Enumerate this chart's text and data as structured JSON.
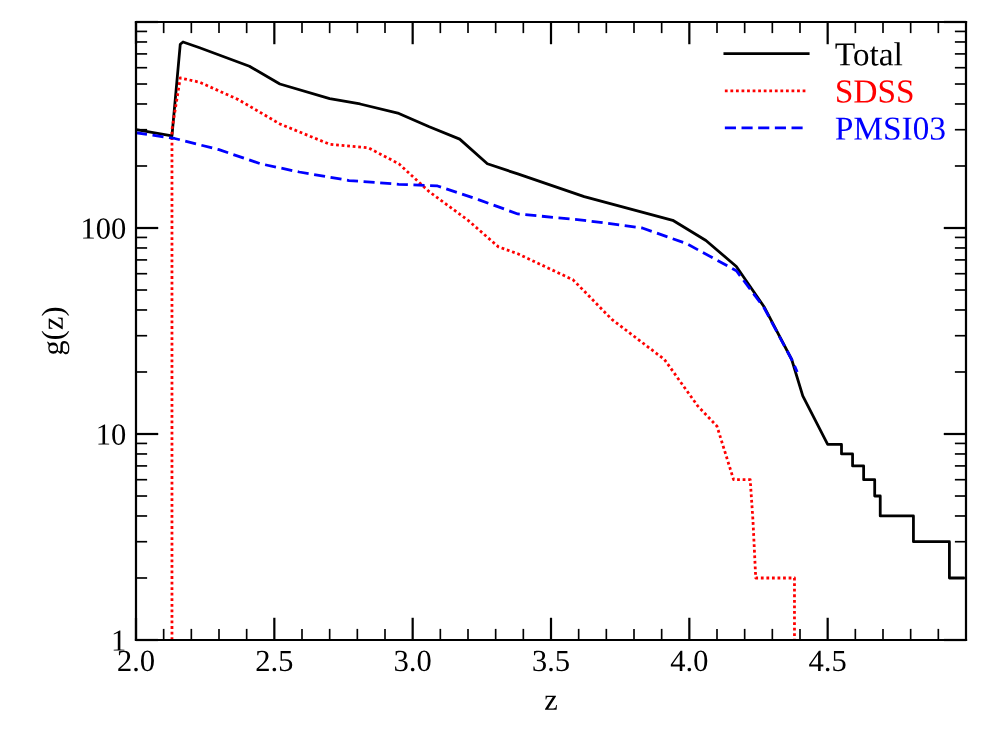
{
  "chart_data": {
    "type": "line",
    "xlabel": "z",
    "ylabel": "g(z)",
    "log": "y",
    "xlim": [
      2.0,
      5.0
    ],
    "ylim": [
      1,
      1000
    ],
    "xticks": [
      {
        "value": 2.0,
        "label": "2.0"
      },
      {
        "value": 2.5,
        "label": "2.5"
      },
      {
        "value": 3.0,
        "label": "3.0"
      },
      {
        "value": 3.5,
        "label": "3.5"
      },
      {
        "value": 4.0,
        "label": "4.0"
      },
      {
        "value": 4.5,
        "label": "4.5"
      }
    ],
    "yticks": [
      1,
      10,
      100,
      {
        "value": 1000,
        "label": null
      }
    ],
    "legend": "top right",
    "grid": false,
    "series": [
      {
        "name": "Total",
        "color": "#000000",
        "line_style": "solid",
        "x": [
          2.0,
          2.13,
          2.16,
          2.17,
          2.23,
          2.41,
          2.52,
          2.7,
          2.81,
          2.95,
          3.06,
          3.17,
          3.27,
          3.38,
          3.62,
          3.94,
          4.06,
          4.17,
          4.27,
          4.37,
          4.41,
          4.5,
          4.55,
          4.55,
          4.59,
          4.59,
          4.63,
          4.63,
          4.67,
          4.67,
          4.69,
          4.69,
          4.81,
          4.81,
          4.94,
          4.94,
          4.99
        ],
        "values": [
          300,
          280,
          780,
          800,
          750,
          610,
          500,
          425,
          400,
          360,
          310,
          270,
          205,
          183,
          142,
          109,
          87,
          65,
          41.5,
          23,
          15.3,
          8.9,
          8.9,
          8,
          8,
          7,
          7,
          6,
          6,
          5,
          5,
          4,
          4,
          3,
          3,
          2,
          2
        ]
      },
      {
        "name": "SDSS",
        "color": "#ff0000",
        "line_style": "dotted",
        "x": [
          2.13,
          2.13,
          2.16,
          2.23,
          2.37,
          2.52,
          2.7,
          2.84,
          2.95,
          3.06,
          3.2,
          3.31,
          3.38,
          3.58,
          3.72,
          3.91,
          4.03,
          4.1,
          4.16,
          4.22,
          4.23,
          4.24,
          4.38,
          4.38
        ],
        "values": [
          1,
          300,
          535,
          510,
          420,
          320,
          255,
          245,
          205,
          150,
          109,
          81,
          75,
          56,
          36,
          23,
          13.7,
          10.9,
          6,
          6,
          3.8,
          2,
          2,
          1
        ]
      },
      {
        "name": "PMSI03",
        "color": "#0000ff",
        "line_style": "dashed",
        "x": [
          2.0,
          2.14,
          2.3,
          2.45,
          2.59,
          2.77,
          2.95,
          3.09,
          3.24,
          3.38,
          3.62,
          3.83,
          3.99,
          4.17,
          4.27,
          4.37,
          4.39
        ],
        "values": [
          290,
          272,
          240,
          205,
          187,
          170,
          163,
          160,
          137,
          117,
          109,
          100,
          84,
          62,
          41,
          23,
          20
        ]
      }
    ]
  }
}
